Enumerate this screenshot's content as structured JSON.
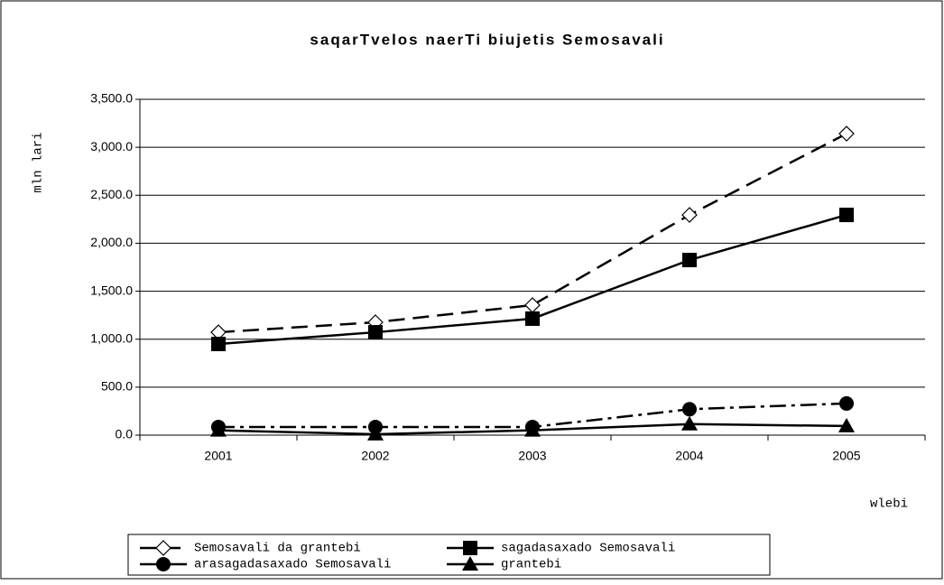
{
  "chart_data": {
    "type": "line",
    "title": "saqarTvelos naerTi biujetis Semosavali",
    "y_label": "mln lari",
    "x_label": "wlebi",
    "categories": [
      "2001",
      "2002",
      "2003",
      "2004",
      "2005"
    ],
    "series": [
      {
        "name": "Semosavali da grantebi",
        "color": "#000000",
        "dash": "18,9",
        "marker": "diamond-open",
        "values": [
          1072,
          1176,
          1355,
          2295,
          3142
        ]
      },
      {
        "name": "sagadasaxado Semosavali",
        "color": "#000000",
        "dash": "none",
        "marker": "square",
        "values": [
          950,
          1072,
          1214,
          1825,
          2295
        ]
      },
      {
        "name": "arasagadasaxado Semosavali",
        "color": "#000000",
        "dash": "18,6,4,6",
        "marker": "circle",
        "values": [
          85,
          85,
          85,
          270,
          330
        ]
      },
      {
        "name": "grantebi",
        "color": "#000000",
        "dash": "none",
        "marker": "triangle",
        "values": [
          50,
          10,
          50,
          115,
          95
        ]
      }
    ],
    "ylim": [
      0,
      3500
    ],
    "yticks": [
      {
        "value": 0,
        "label": "0.0"
      },
      {
        "value": 500,
        "label": "500.0"
      },
      {
        "value": 1000,
        "label": "1,000.0"
      },
      {
        "value": 1500,
        "label": "1,500.0"
      },
      {
        "value": 2000,
        "label": "2,000.0"
      },
      {
        "value": 2500,
        "label": "2,500.0"
      },
      {
        "value": 3000,
        "label": "3,000.0"
      },
      {
        "value": 3500,
        "label": "3,500.0"
      }
    ],
    "grid": true
  }
}
